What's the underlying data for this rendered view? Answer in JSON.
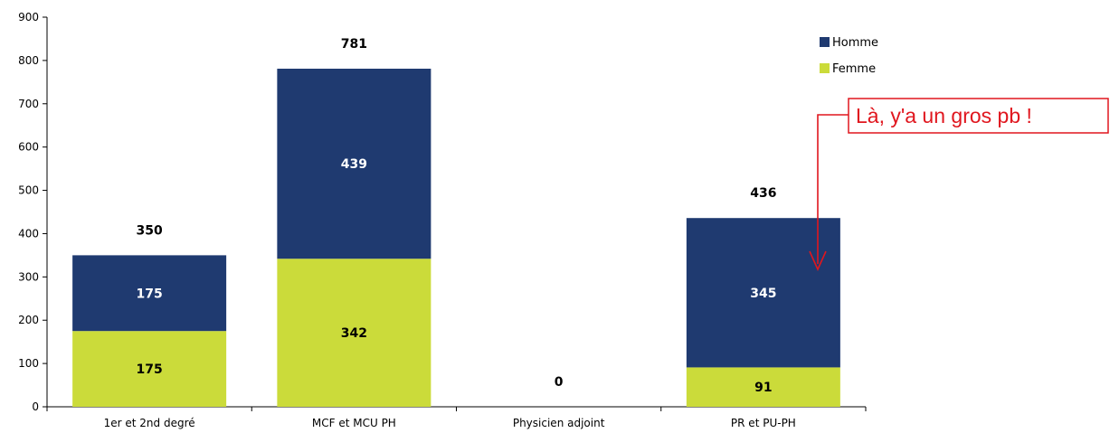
{
  "chart_data": {
    "type": "bar",
    "stacked": true,
    "categories": [
      "1er et 2nd degré",
      "MCF et MCU PH",
      "Physicien adjoint",
      "PR et PU-PH"
    ],
    "series": [
      {
        "name": "Femme",
        "values": [
          175,
          342,
          0,
          91
        ],
        "color": "#cbdb3a"
      },
      {
        "name": "Homme",
        "values": [
          175,
          439,
          0,
          345
        ],
        "color": "#1f3a70"
      }
    ],
    "totals": [
      350,
      781,
      0,
      436
    ],
    "ylim": [
      0,
      900
    ],
    "yticks": [
      0,
      100,
      200,
      300,
      400,
      500,
      600,
      700,
      800,
      900
    ],
    "legend": {
      "placement": "top-right",
      "entries": [
        "Homme",
        "Femme"
      ]
    },
    "grid": false,
    "annotation": {
      "text": "Là, y'a un gros pb !",
      "color": "#e0161e",
      "points_to": "PR et PU-PH"
    }
  }
}
